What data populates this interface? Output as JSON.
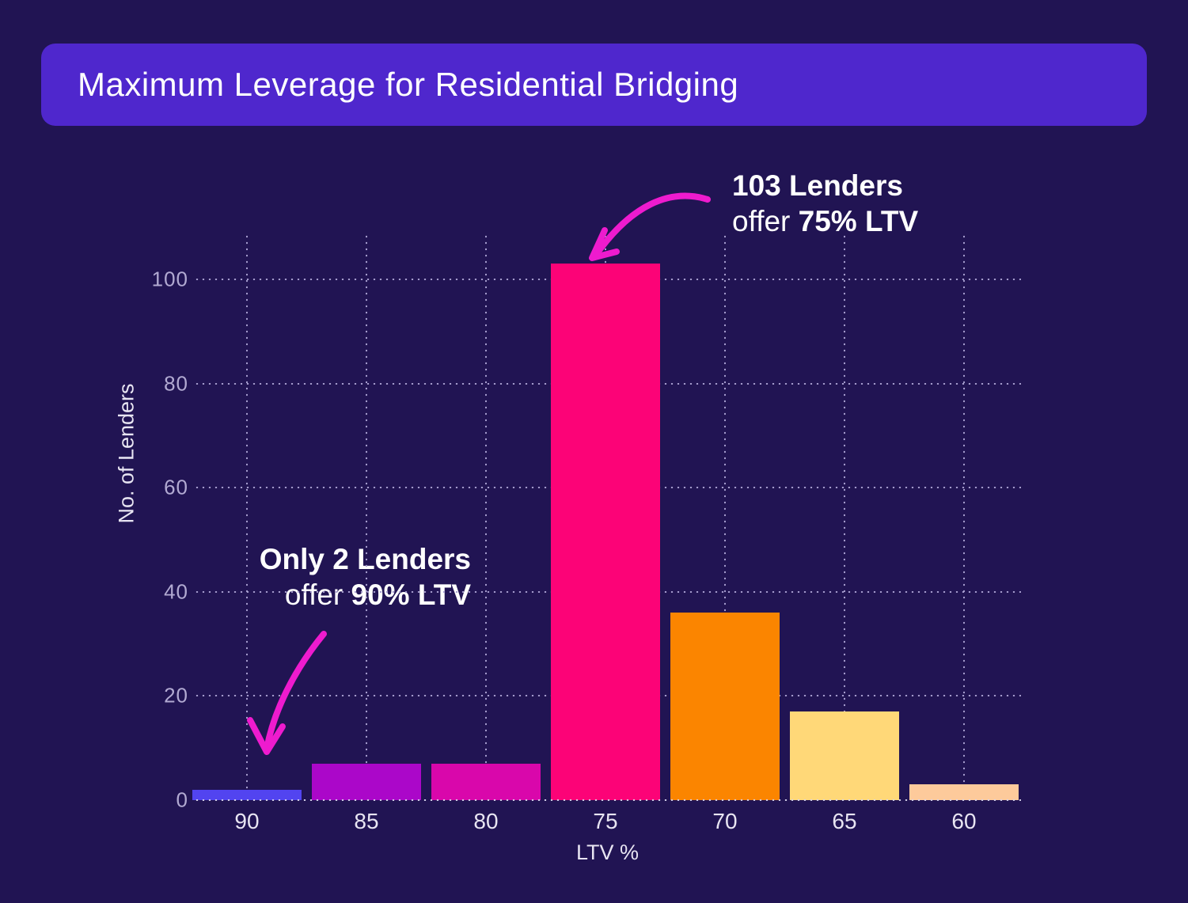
{
  "title": "Maximum Leverage for Residential Bridging",
  "colors": {
    "background": "#211453",
    "banner": "#4f27cd",
    "grid": "#a89fd0",
    "baseline": "#d6d1ea",
    "xtick": "#e8e5f2",
    "ytick": "#b2aad2",
    "axis_label": "#e8e5f2",
    "annotation_text": "#ffffff",
    "arrow": "#ee1bce"
  },
  "annotations": {
    "top": {
      "line1": "103 Lenders",
      "line2_regular": "offer",
      "line2_bold": "75% LTV"
    },
    "left": {
      "line1": "Only 2 Lenders",
      "line2_regular": "offer",
      "line2_bold": "90% LTV"
    }
  },
  "chart_data": {
    "type": "bar",
    "title": "Maximum Leverage for Residential Bridging",
    "categories": [
      "90",
      "85",
      "80",
      "75",
      "70",
      "65",
      "60"
    ],
    "values": [
      2,
      7,
      7,
      103,
      36,
      17,
      3
    ],
    "bar_colors": [
      "#5244f0",
      "#ab07c9",
      "#d907ab",
      "#fc0377",
      "#fb8500",
      "#ffd878",
      "#fdca9b"
    ],
    "xlabel": "LTV %",
    "ylabel": "No. of Lenders",
    "yticks": [
      0,
      20,
      40,
      60,
      80,
      100
    ],
    "ylim": [
      0,
      108.8
    ],
    "grid": "dotted",
    "legend_position": "none",
    "annotation_texts": [
      "103 Lenders offer 75% LTV",
      "Only 2 Lenders offer 90% LTV"
    ]
  }
}
